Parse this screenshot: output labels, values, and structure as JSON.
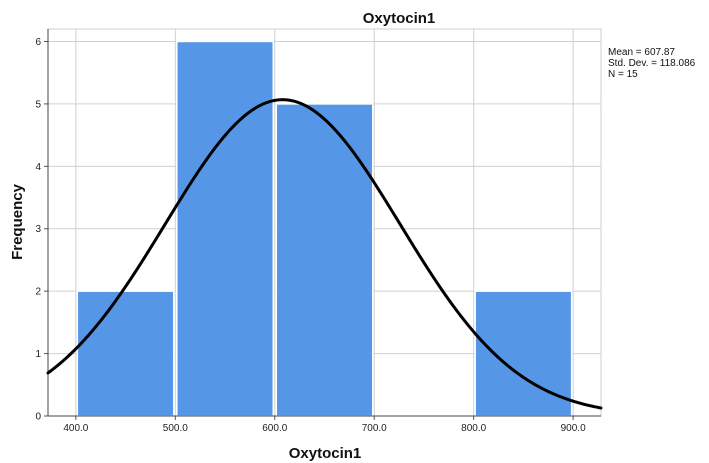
{
  "chart_data": {
    "type": "bar",
    "title": "Oxytocin1",
    "xlabel": "Oxytocin1",
    "ylabel": "Frequency",
    "bins": [
      {
        "start": 400,
        "end": 500,
        "count": 2
      },
      {
        "start": 500,
        "end": 600,
        "count": 6
      },
      {
        "start": 600,
        "end": 700,
        "count": 5
      },
      {
        "start": 700,
        "end": 800,
        "count": 0
      },
      {
        "start": 800,
        "end": 900,
        "count": 2
      }
    ],
    "x_ticks": [
      "400.0",
      "500.0",
      "600.0",
      "700.0",
      "800.0",
      "900.0"
    ],
    "x_tick_values": [
      400,
      500,
      600,
      700,
      800,
      900
    ],
    "y_ticks": [
      "0",
      "1",
      "2",
      "3",
      "4",
      "5",
      "6"
    ],
    "xlim": [
      372,
      928
    ],
    "ylim": [
      0,
      6.2
    ],
    "grid": true,
    "bar_color": "#5596e6",
    "curve": {
      "type": "normal",
      "mean": 607.87,
      "sd": 118.086,
      "n": 15,
      "bin_width": 100
    },
    "stats": [
      "Mean = 607.87",
      "Std. Dev. = 118.086",
      "N = 15"
    ]
  }
}
